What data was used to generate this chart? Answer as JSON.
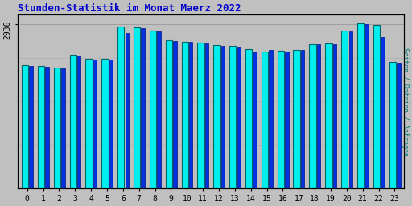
{
  "title": "Stunden-Statistik im Monat Maerz 2022",
  "title_color": "#0000CC",
  "ylabel_right": "Seiten / Dateien / Anfragen",
  "ytick_label": "2936",
  "background_color": "#C0C0C0",
  "plot_bg_color": "#C0C0C0",
  "bar_color_cyan": "#00EEEE",
  "bar_color_blue": "#0033DD",
  "bar_edgecolor": "#006666",
  "categories": [
    0,
    1,
    2,
    3,
    4,
    5,
    6,
    7,
    8,
    9,
    10,
    11,
    12,
    13,
    14,
    15,
    16,
    17,
    18,
    19,
    20,
    21,
    22,
    23
  ],
  "vals_cyan": [
    2200,
    2180,
    2150,
    2380,
    2320,
    2310,
    2890,
    2870,
    2820,
    2640,
    2620,
    2600,
    2560,
    2540,
    2490,
    2450,
    2460,
    2480,
    2580,
    2590,
    2820,
    2940,
    2920,
    2260
  ],
  "vals_blue": [
    2190,
    2170,
    2140,
    2370,
    2300,
    2300,
    2780,
    2860,
    2800,
    2630,
    2610,
    2590,
    2550,
    2520,
    2430,
    2470,
    2450,
    2470,
    2570,
    2580,
    2800,
    2930,
    2700,
    2250
  ],
  "ymax": 3100,
  "ymin": 0,
  "ytick_val": 2936,
  "hlines": [
    2936
  ],
  "figsize": [
    5.12,
    2.56
  ],
  "dpi": 100
}
